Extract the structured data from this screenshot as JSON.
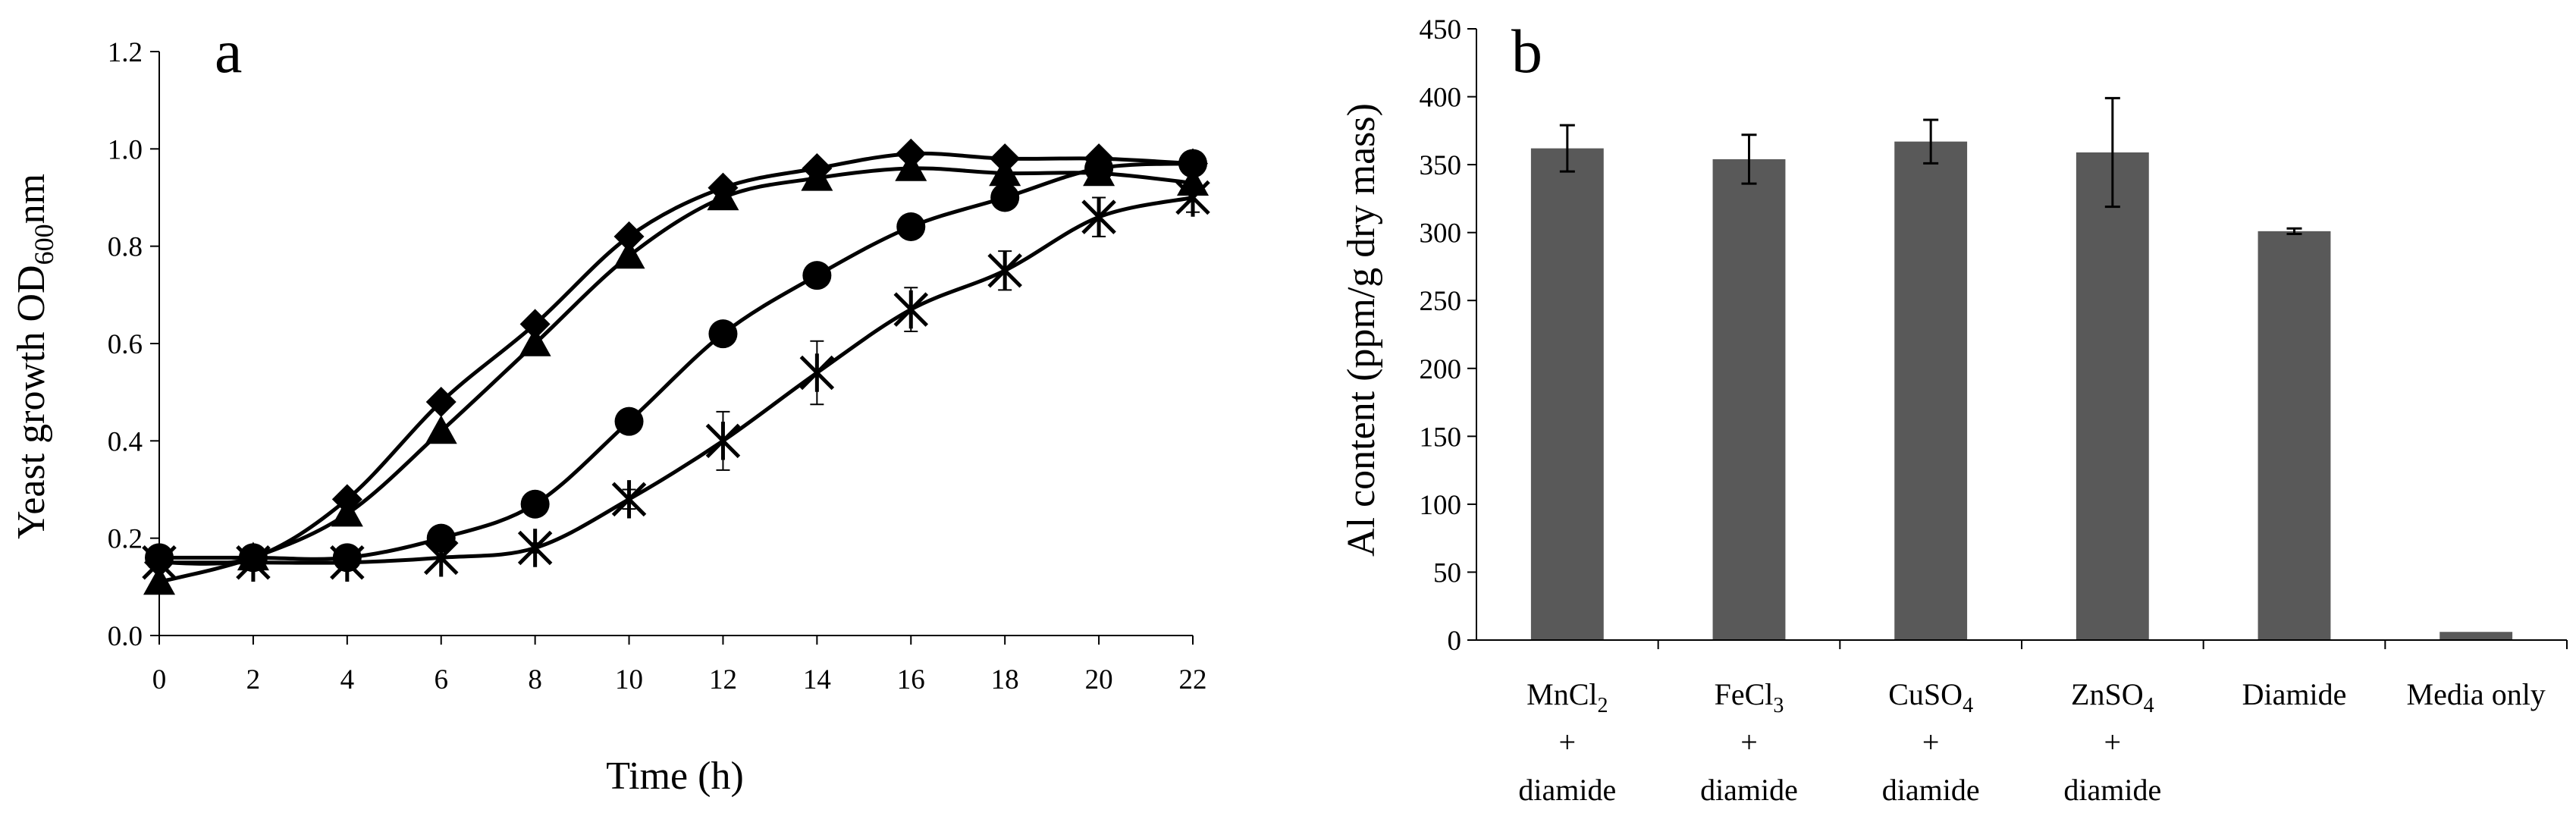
{
  "chart_data": [
    {
      "type": "line",
      "panel_label": "a",
      "title": "",
      "xlabel": "Time (h)",
      "ylabel": {
        "prefix": "Yeast growth OD",
        "sub": "600",
        "suffix": "nm"
      },
      "x": [
        0,
        2,
        4,
        6,
        8,
        10,
        12,
        14,
        16,
        18,
        20,
        22
      ],
      "x_ticks": [
        "0",
        "2",
        "4",
        "6",
        "8",
        "10",
        "12",
        "14",
        "16",
        "18",
        "20",
        "22"
      ],
      "y_ticks": [
        "0.0",
        "0.2",
        "0.4",
        "0.6",
        "0.8",
        "1.0",
        "1.2"
      ],
      "xlim": [
        0,
        22
      ],
      "ylim": [
        0,
        1.2
      ],
      "grid": false,
      "series": [
        {
          "name": "diamond",
          "marker": "diamond",
          "values": [
            0.15,
            0.16,
            0.28,
            0.48,
            0.64,
            0.82,
            0.92,
            0.96,
            0.99,
            0.98,
            0.98,
            0.97
          ]
        },
        {
          "name": "triangle",
          "marker": "triangle",
          "values": [
            0.11,
            0.16,
            0.25,
            0.42,
            0.6,
            0.78,
            0.9,
            0.94,
            0.96,
            0.95,
            0.95,
            0.93
          ]
        },
        {
          "name": "circle",
          "marker": "circle",
          "values": [
            0.16,
            0.16,
            0.16,
            0.2,
            0.27,
            0.44,
            0.62,
            0.74,
            0.84,
            0.9,
            0.96,
            0.97
          ]
        },
        {
          "name": "star",
          "marker": "star",
          "values": [
            0.15,
            0.15,
            0.15,
            0.16,
            0.18,
            0.28,
            0.4,
            0.54,
            0.67,
            0.75,
            0.86,
            0.9
          ],
          "errors": [
            0,
            0,
            0,
            0,
            0.01,
            0.02,
            0.06,
            0.065,
            0.045,
            0.04,
            0.04,
            0.03
          ]
        }
      ]
    },
    {
      "type": "bar",
      "panel_label": "b",
      "title": "",
      "xlabel": "",
      "ylabel": "Al content  (ppm/g dry mass)",
      "categories": [
        {
          "lines": [
            {
              "main": "MnCl",
              "sub": "2"
            },
            {
              "main": "+"
            },
            {
              "main": "diamide"
            }
          ]
        },
        {
          "lines": [
            {
              "main": "FeCl",
              "sub": "3"
            },
            {
              "main": "+"
            },
            {
              "main": "diamide"
            }
          ]
        },
        {
          "lines": [
            {
              "main": "CuSO",
              "sub": "4"
            },
            {
              "main": "+"
            },
            {
              "main": "diamide"
            }
          ]
        },
        {
          "lines": [
            {
              "main": "ZnSO",
              "sub": "4"
            },
            {
              "main": "+"
            },
            {
              "main": "diamide"
            }
          ]
        },
        {
          "lines": [
            {
              "main": "Diamide"
            }
          ]
        },
        {
          "lines": [
            {
              "main": "Media only"
            }
          ]
        }
      ],
      "values": [
        362,
        354,
        367,
        359,
        301,
        6
      ],
      "errors": [
        17,
        18,
        16,
        40,
        2,
        0
      ],
      "y_ticks": [
        "0",
        "50",
        "100",
        "150",
        "200",
        "250",
        "300",
        "350",
        "400",
        "450"
      ],
      "ylim": [
        0,
        450
      ],
      "grid": false
    }
  ],
  "colors": {
    "line": "#000000",
    "bar": "#595959",
    "axis": "#000000"
  }
}
